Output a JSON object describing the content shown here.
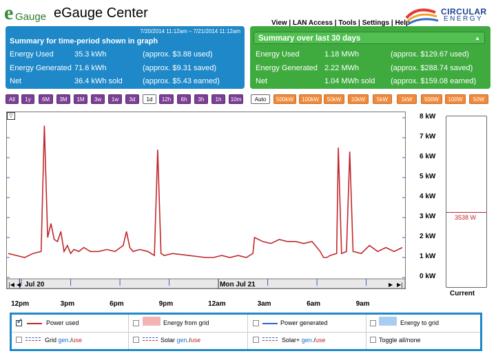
{
  "header": {
    "logo_text": "Gauge",
    "logo_letter": "e",
    "title": "eGauge Center",
    "nav": [
      "View",
      "LAN Access",
      "Tools",
      "Settings",
      "Help"
    ],
    "brand_line1": "CIRCULAR",
    "brand_line2": "ENERGY"
  },
  "summary_graph": {
    "title": "Summary for time-period shown in graph",
    "range": "7/20/2014 11:12am – 7/21/2014 11:12am",
    "rows": [
      {
        "label": "Energy Used",
        "value": "35.3 kWh",
        "note": "(approx. $3.88 used)"
      },
      {
        "label": "Energy Generated",
        "value": "71.6 kWh",
        "note": "(approx. $9.31 saved)"
      },
      {
        "label": "Net",
        "value": "36.4 kWh sold",
        "note": "(approx. $5.43 earned)"
      }
    ]
  },
  "summary_30": {
    "title": "Summary over last 30 days",
    "rows": [
      {
        "label": "Energy Used",
        "value": "1.18 MWh",
        "note": "(approx. $129.67 used)"
      },
      {
        "label": "Energy Generated",
        "value": "2.22 MWh",
        "note": "(approx. $288.74 saved)"
      },
      {
        "label": "Net",
        "value": "1.04 MWh sold",
        "note": "(approx. $159.08 earned)"
      }
    ]
  },
  "toolbar": {
    "time_buttons": [
      "All",
      "1y",
      "6M",
      "3M",
      "1M",
      "3w",
      "1w",
      "3d",
      "1d",
      "12h",
      "6h",
      "3h",
      "1h",
      "10m"
    ],
    "active_time": "1d",
    "scale_buttons": [
      "Auto",
      "500kW",
      "100kW",
      "50kW",
      "10kW",
      "5kW",
      "1kW",
      "500W",
      "100W",
      "50W"
    ]
  },
  "colors": {
    "used_line": "#c0262b",
    "panel_blue": "#1e88c8",
    "panel_green": "#3fab3f",
    "toolbar_purple": "#7b3f95",
    "toolbar_orange": "#f08a3a"
  },
  "chart_data": {
    "type": "line",
    "title": "",
    "ylabel": "",
    "ylim": [
      0,
      8
    ],
    "y_ticks": [
      "8 kW",
      "7 kW",
      "6 kW",
      "5 kW",
      "4 kW",
      "3 kW",
      "2 kW",
      "1 kW",
      "0 kW"
    ],
    "x_tick_labels": [
      "12pm",
      "3pm",
      "6pm",
      "9pm",
      "12am",
      "3am",
      "6am",
      "9am"
    ],
    "date_labels": [
      "Jul 20",
      "Mon Jul 21"
    ],
    "series": [
      {
        "name": "Power used",
        "unit": "kW",
        "x_hours": [
          0,
          0.5,
          1,
          1.5,
          2,
          2.2,
          2.4,
          2.6,
          2.8,
          3,
          3.2,
          3.4,
          3.6,
          3.8,
          4,
          4.3,
          4.6,
          5,
          5.5,
          6,
          6.5,
          7,
          7.2,
          7.4,
          7.6,
          8,
          8.5,
          8.9,
          9.1,
          9.3,
          9.5,
          10,
          11,
          12,
          12.5,
          13,
          13.5,
          14,
          14.5,
          14.9,
          15,
          15.5,
          16,
          16.5,
          17,
          17.5,
          18,
          18.5,
          19,
          19.2,
          19.4,
          19.6,
          20,
          20.1,
          20.3,
          20.6,
          20.8,
          21,
          21.5,
          22,
          22.5,
          23,
          23.5,
          24
        ],
        "values": [
          1.2,
          1.1,
          1.0,
          1.2,
          1.3,
          7.6,
          2.0,
          2.7,
          1.9,
          1.8,
          2.3,
          1.3,
          1.6,
          1.2,
          1.4,
          1.3,
          1.5,
          1.3,
          1.3,
          1.4,
          1.3,
          1.6,
          2.3,
          1.5,
          1.3,
          1.4,
          1.3,
          1.1,
          6.4,
          1.2,
          1.1,
          1.2,
          1.1,
          1.0,
          1.0,
          1.1,
          1.0,
          1.1,
          1.0,
          1.2,
          2.0,
          1.8,
          1.7,
          1.9,
          1.8,
          1.8,
          1.7,
          1.8,
          1.3,
          1.0,
          1.0,
          1.1,
          1.2,
          6.5,
          1.2,
          1.3,
          6.3,
          1.3,
          1.2,
          1.6,
          1.3,
          1.5,
          1.3,
          1.5
        ]
      }
    ]
  },
  "current": {
    "value": "3538 W",
    "value_kw": 3.538,
    "label": "Current"
  },
  "legend": {
    "items": [
      {
        "label": "Power used",
        "checked": true
      },
      {
        "label": "Energy from grid",
        "checked": false
      },
      {
        "label": "Power generated",
        "checked": false
      },
      {
        "label": "Energy to grid",
        "checked": false
      },
      {
        "label": "Grid",
        "checked": false
      },
      {
        "label": "Solar",
        "checked": false
      },
      {
        "label": "Solar+",
        "checked": false
      },
      {
        "label": "Toggle all/none",
        "checked": false
      }
    ],
    "gen_text": "gen.",
    "use_text": "use",
    "slash": "/"
  }
}
